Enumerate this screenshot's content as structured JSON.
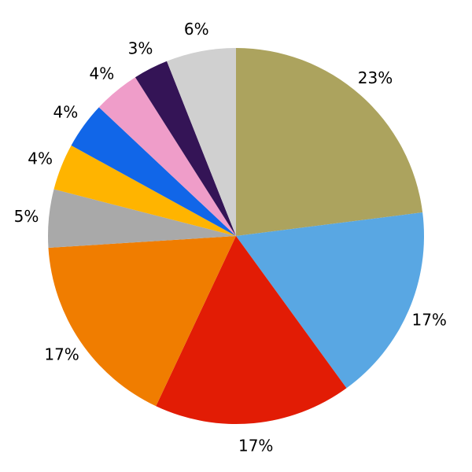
{
  "figure": {
    "background": "#ffffff",
    "title": ""
  },
  "chart_data": {
    "type": "pie",
    "title": "",
    "labels": [
      "23%",
      "17%",
      "17%",
      "17%",
      "5%",
      "4%",
      "4%",
      "4%",
      "3%",
      "6%"
    ],
    "values": [
      23,
      17,
      17,
      17,
      5,
      4,
      4,
      4,
      3,
      6
    ],
    "colors": [
      "#aca35e",
      "#59a7e3",
      "#e21c05",
      "#f07d00",
      "#a9a9a9",
      "#ffb400",
      "#1166e8",
      "#ef9dc9",
      "#341456",
      "#d0d0d0"
    ],
    "start_angle_deg": 90,
    "counterclockwise": false,
    "label_distance_ratio": 1.12,
    "label_color": "#000000",
    "legend": "none",
    "grid": "off"
  }
}
